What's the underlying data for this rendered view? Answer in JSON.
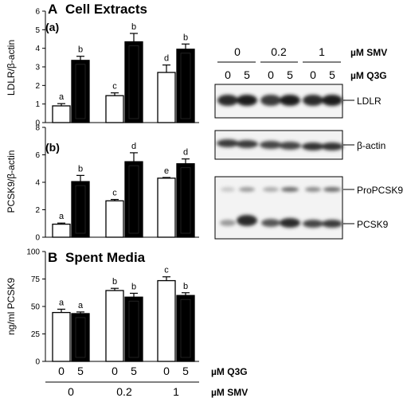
{
  "panel_a": {
    "letter": "A",
    "title": "Cell Extracts",
    "subpanel_a": "(a)",
    "subpanel_b": "(b)"
  },
  "panel_b": {
    "letter": "B",
    "title": "Spent Media"
  },
  "blot": {
    "smv_values": [
      "0",
      "0.2",
      "1"
    ],
    "smv_label": "µM SMV",
    "q3g_values": [
      "0",
      "5",
      "0",
      "5",
      "0",
      "5"
    ],
    "q3g_label": "µM Q3G",
    "band_labels": {
      "ldlr": "LDLR",
      "actin": "β-actin",
      "propcsk9": "ProPCSK9",
      "pcsk9": "PCSK9"
    }
  },
  "bottom_axis": {
    "q3g_values": [
      "0",
      "5",
      "0",
      "5",
      "0",
      "5"
    ],
    "q3g_label": "µM Q3G",
    "smv_values": [
      "0",
      "0.2",
      "1"
    ],
    "smv_label": "µM SMV"
  },
  "chart_data": [
    {
      "type": "bar",
      "panel": "A(a)",
      "ylabel": "LDLR/β-actin",
      "ylim": [
        0,
        6
      ],
      "yticks": [
        0,
        1,
        2,
        3,
        4,
        5,
        6
      ],
      "categories": [
        "0",
        "0.2",
        "1"
      ],
      "series": [
        {
          "name": "0 µM Q3G",
          "color": "#ffffff",
          "values": [
            0.9,
            1.45,
            2.7
          ],
          "errors": [
            0.12,
            0.15,
            0.4
          ],
          "letters": [
            "a",
            "c",
            "d"
          ]
        },
        {
          "name": "5 µM Q3G",
          "color": "#000000",
          "values": [
            3.35,
            4.35,
            3.95
          ],
          "errors": [
            0.22,
            0.45,
            0.28
          ],
          "letters": [
            "b",
            "b",
            "b"
          ]
        }
      ]
    },
    {
      "type": "bar",
      "panel": "A(b)",
      "ylabel": "PCSK9/β-actin",
      "ylim": [
        0,
        8
      ],
      "yticks": [
        0,
        2,
        4,
        6,
        8
      ],
      "categories": [
        "0",
        "0.2",
        "1"
      ],
      "series": [
        {
          "name": "0 µM Q3G",
          "color": "#ffffff",
          "values": [
            0.95,
            2.65,
            4.3
          ],
          "errors": [
            0.08,
            0.1,
            0.05
          ],
          "letters": [
            "a",
            "c",
            "e"
          ]
        },
        {
          "name": "5 µM Q3G",
          "color": "#000000",
          "values": [
            4.05,
            5.5,
            5.35
          ],
          "errors": [
            0.45,
            0.65,
            0.35
          ],
          "letters": [
            "b",
            "d",
            "d"
          ]
        }
      ]
    },
    {
      "type": "bar",
      "panel": "B",
      "ylabel": "ng/ml PCSK9",
      "ylim": [
        0,
        100
      ],
      "yticks": [
        0,
        25,
        50,
        75,
        100
      ],
      "categories": [
        "0",
        "0.2",
        "1"
      ],
      "series": [
        {
          "name": "0 µM Q3G",
          "color": "#ffffff",
          "values": [
            44.5,
            64.5,
            73.5
          ],
          "errors": [
            3.0,
            2.0,
            3.5
          ],
          "letters": [
            "a",
            "b",
            "c"
          ]
        },
        {
          "name": "5 µM Q3G",
          "color": "#000000",
          "values": [
            43.5,
            58.5,
            60.0
          ],
          "errors": [
            1.5,
            3.5,
            2.5
          ],
          "letters": [
            "a",
            "b",
            "b"
          ]
        }
      ]
    }
  ]
}
